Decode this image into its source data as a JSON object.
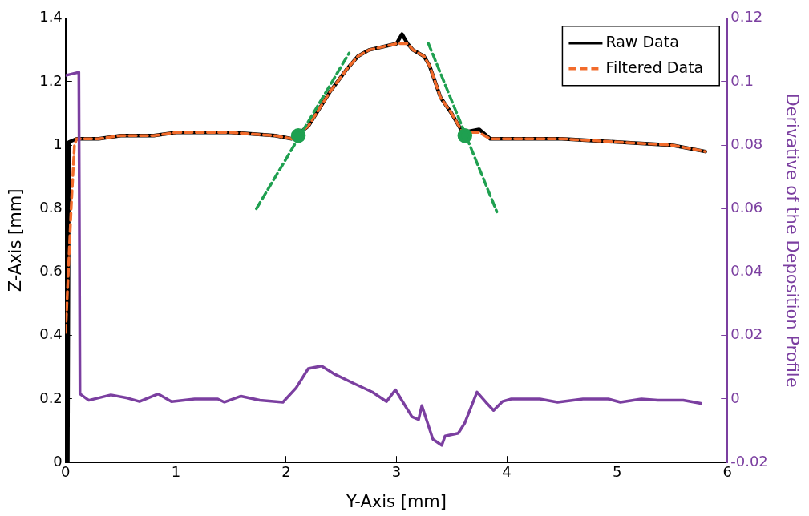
{
  "chart_data": {
    "type": "line",
    "xlabel": "Y-Axis [mm]",
    "ylabel": "Z-Axis [mm]",
    "y2label": "Derivative of the Deposition Profile",
    "xlim": [
      0,
      6
    ],
    "xticks": [
      0,
      1,
      2,
      3,
      4,
      5,
      6
    ],
    "ylim": [
      0,
      1.4
    ],
    "yticks": [
      0,
      0.2,
      0.4,
      0.6,
      0.8,
      1,
      1.2,
      1.4
    ],
    "y2lim": [
      -0.02,
      0.12
    ],
    "y2ticks": [
      -0.02,
      0,
      0.02,
      0.04,
      0.06,
      0.08,
      0.1,
      0.12
    ],
    "legend": "top right",
    "grid": false,
    "marker": "none",
    "series": [
      {
        "name": "Raw Data",
        "color": "#000000",
        "line_style": "solid",
        "x": [
          0.02,
          0.03,
          0.1,
          0.3,
          0.5,
          0.8,
          1.0,
          1.5,
          1.9,
          2.05,
          2.2,
          2.4,
          2.55,
          2.65,
          2.75,
          3.0,
          3.05,
          3.1,
          3.15,
          3.25,
          3.3,
          3.4,
          3.5,
          3.6,
          3.75,
          3.85,
          4.0,
          4.5,
          5.0,
          5.5,
          5.8
        ],
        "values": [
          0,
          1.01,
          1.02,
          1.02,
          1.03,
          1.03,
          1.04,
          1.04,
          1.03,
          1.02,
          1.06,
          1.17,
          1.24,
          1.28,
          1.3,
          1.32,
          1.35,
          1.32,
          1.3,
          1.28,
          1.25,
          1.15,
          1.1,
          1.04,
          1.05,
          1.02,
          1.02,
          1.02,
          1.01,
          1.0,
          0.98
        ]
      },
      {
        "name": "Filtered Data",
        "color": "#f26b2b",
        "line_style": "dashed",
        "x": [
          0,
          0.05,
          0.08,
          0.1,
          0.3,
          0.5,
          0.8,
          1.0,
          1.5,
          1.9,
          2.05,
          2.2,
          2.4,
          2.55,
          2.65,
          2.75,
          3.0,
          3.1,
          3.15,
          3.25,
          3.3,
          3.4,
          3.5,
          3.6,
          3.75,
          3.85,
          4.0,
          4.5,
          5.0,
          5.5,
          5.8
        ],
        "values": [
          0.41,
          0.8,
          1.0,
          1.02,
          1.02,
          1.03,
          1.03,
          1.04,
          1.04,
          1.03,
          1.02,
          1.06,
          1.17,
          1.24,
          1.28,
          1.3,
          1.32,
          1.32,
          1.3,
          1.28,
          1.25,
          1.15,
          1.1,
          1.04,
          1.04,
          1.02,
          1.02,
          1.02,
          1.01,
          1.0,
          0.98
        ]
      },
      {
        "color": "#7b3fa0",
        "line_style": "solid",
        "axis": "y2",
        "x": [
          0,
          0.12,
          0.13,
          0.21,
          0.41,
          0.56,
          0.67,
          0.84,
          0.96,
          1.17,
          1.38,
          1.44,
          1.59,
          1.76,
          1.97,
          2.09,
          2.2,
          2.32,
          2.43,
          2.62,
          2.78,
          2.91,
          2.99,
          3.14,
          3.2,
          3.23,
          3.33,
          3.41,
          3.44,
          3.56,
          3.62,
          3.73,
          3.81,
          3.88,
          3.96,
          4.04,
          4.3,
          4.46,
          4.69,
          4.92,
          5.03,
          5.22,
          5.37,
          5.6,
          5.76
        ],
        "values": [
          0.102,
          0.103,
          0.0016,
          -0.0004,
          0.0013,
          0.0003,
          -0.0008,
          0.0016,
          -0.0008,
          0,
          0,
          -0.001,
          0.0009,
          -0.0004,
          -0.001,
          0.0035,
          0.0096,
          0.0104,
          0.008,
          0.0048,
          0.0022,
          -0.0008,
          0.0029,
          -0.0056,
          -0.0065,
          -0.0021,
          -0.0127,
          -0.0146,
          -0.0117,
          -0.0108,
          -0.0075,
          0.0022,
          -0.001,
          -0.0036,
          -0.0008,
          0,
          0,
          -0.001,
          0,
          0,
          -0.001,
          0,
          -0.0004,
          -0.0004,
          -0.0014
        ]
      },
      {
        "color": "#1fa050",
        "line_style": "dashed",
        "x": [
          1.73,
          2.57
        ],
        "values": [
          0.8,
          1.29
        ]
      },
      {
        "color": "#1fa050",
        "line_style": "dashed",
        "x": [
          3.29,
          3.91
        ],
        "values": [
          1.32,
          0.79
        ]
      },
      {
        "type": "scatter",
        "color": "#1fa050",
        "marker": "circle",
        "x": [
          2.11,
          3.62
        ],
        "values": [
          1.03,
          1.03
        ]
      }
    ]
  }
}
